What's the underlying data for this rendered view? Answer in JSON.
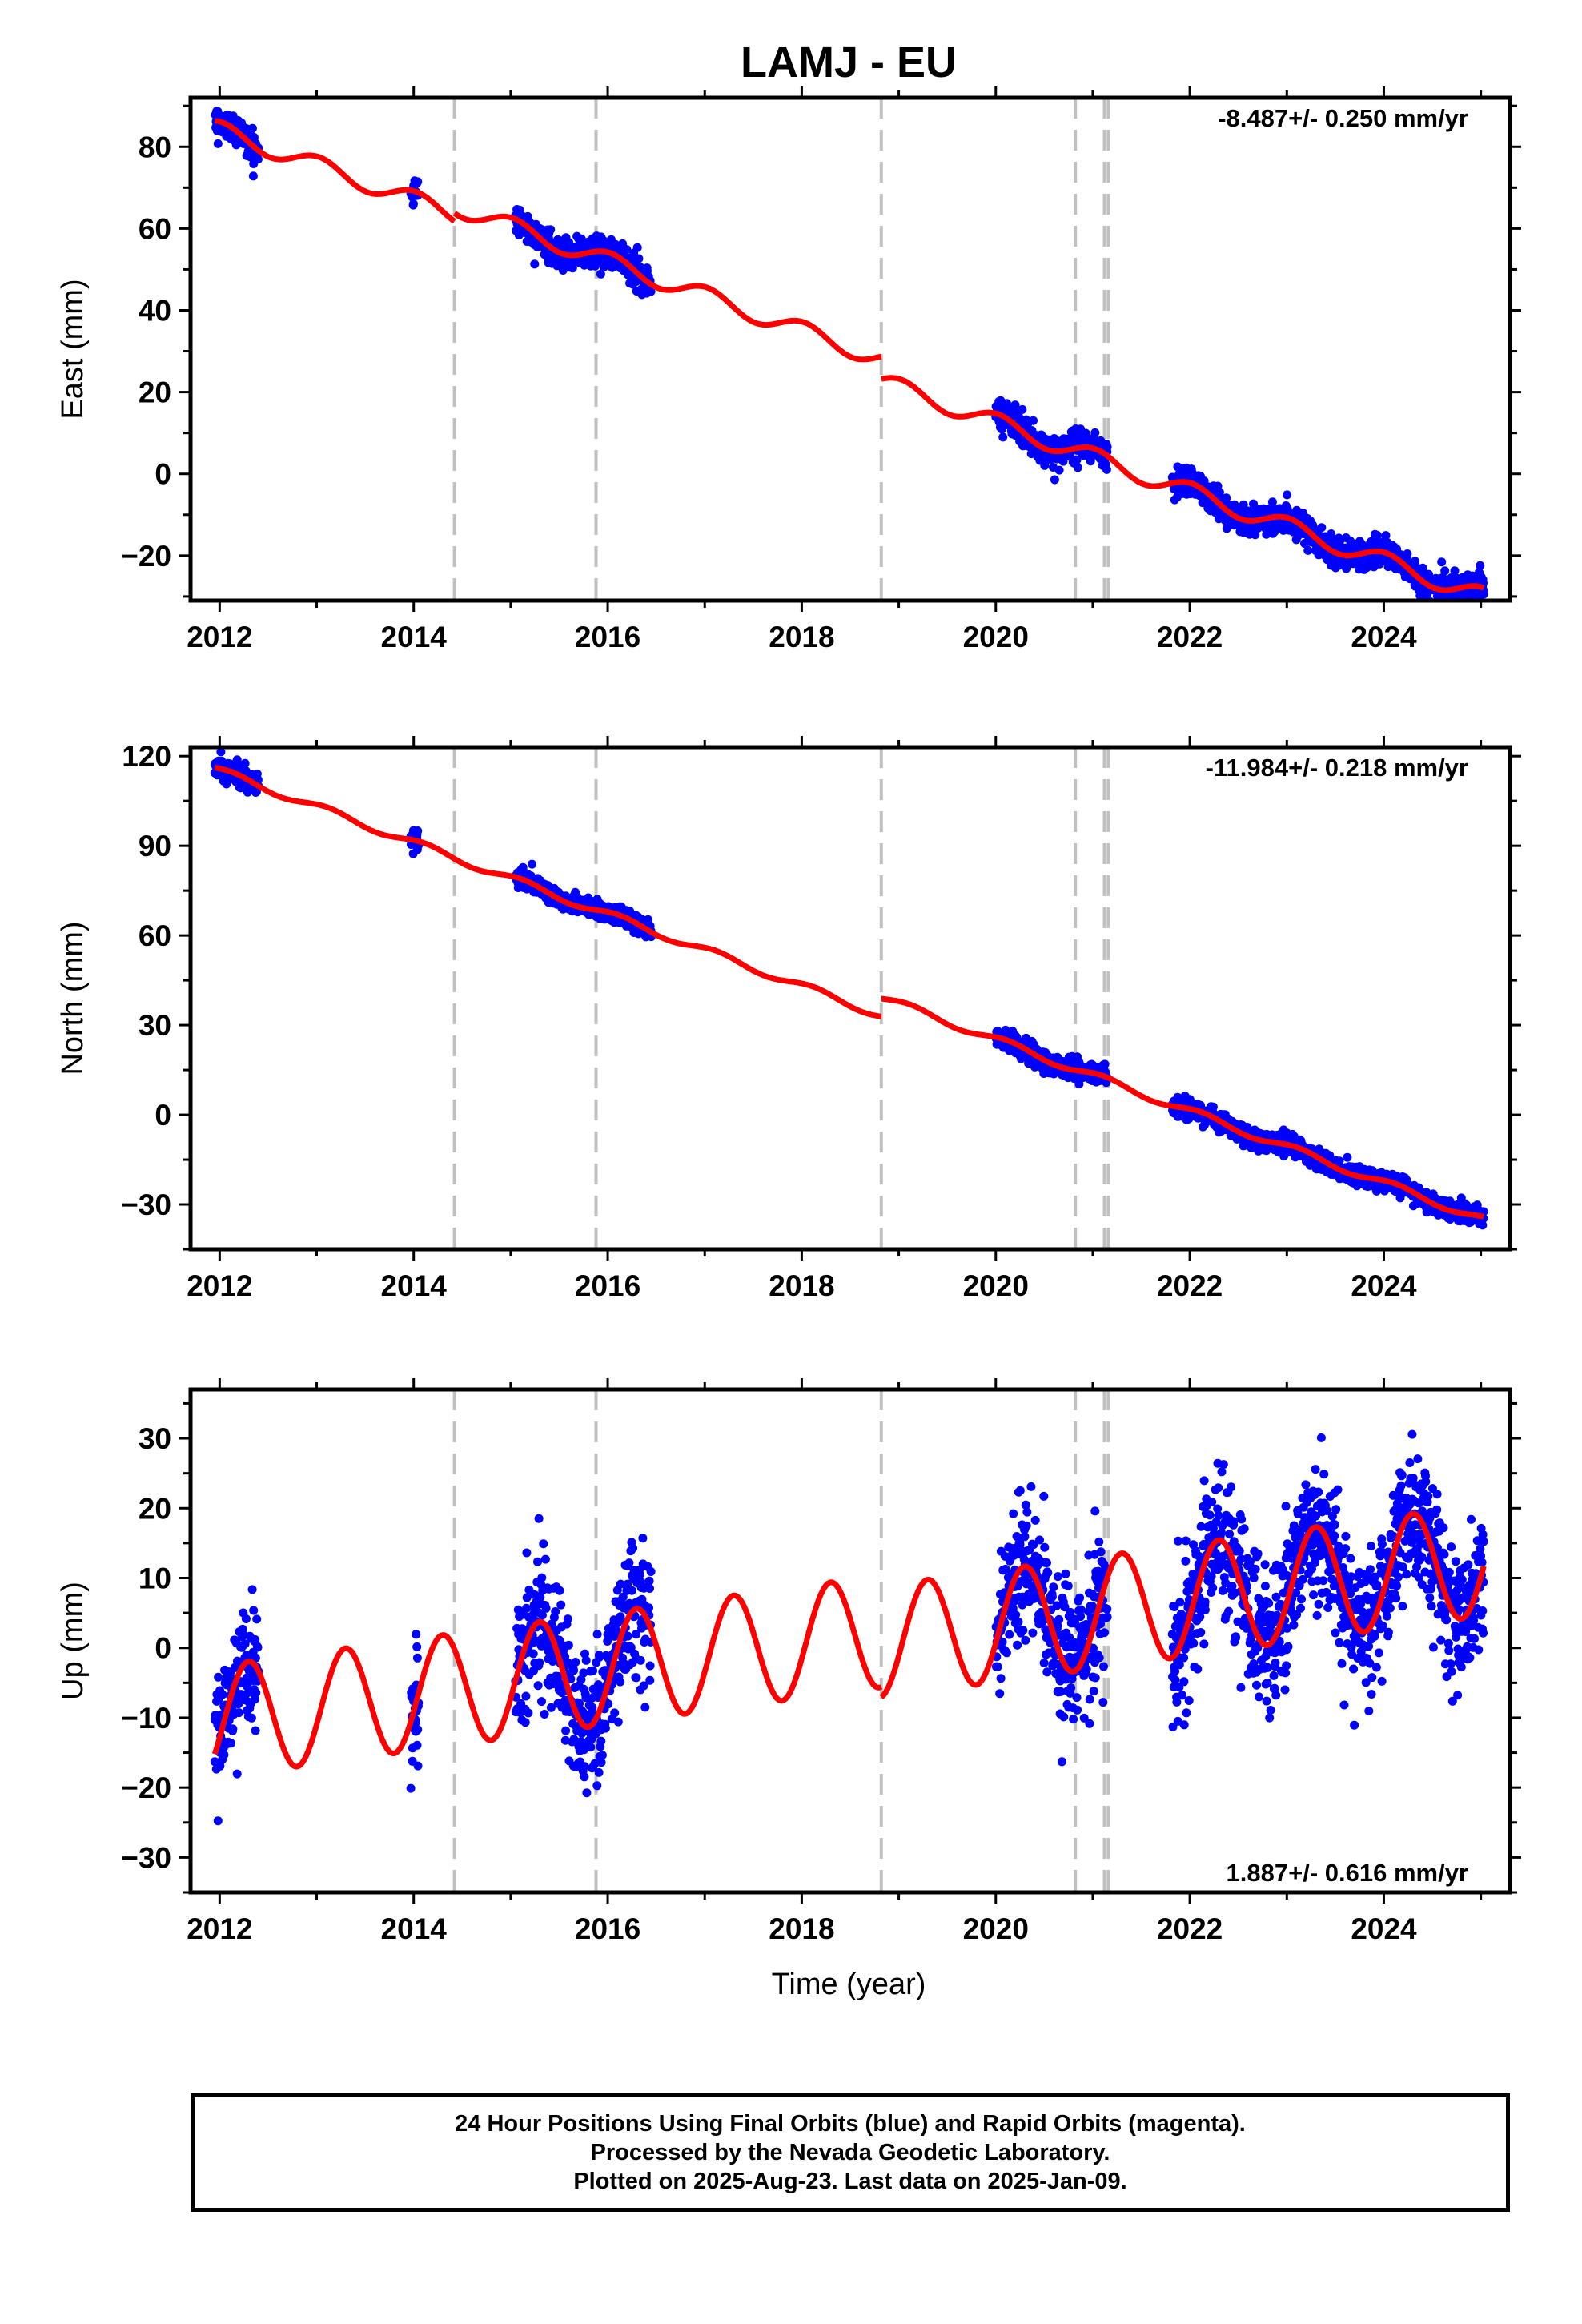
{
  "title": "LAMJ - EU",
  "xlabel": "Time (year)",
  "caption": [
    "24 Hour Positions Using Final Orbits (blue) and Rapid Orbits (magenta).",
    "Processed by the Nevada Geodetic Laboratory.",
    "Plotted on 2025-Aug-23. Last data on 2025-Jan-09."
  ],
  "colors": {
    "data": "#0000ff",
    "model": "#ff0000",
    "offset_line": "#c0c0c0"
  },
  "offset_lines": [
    2014.42,
    2015.88,
    2018.82,
    2020.82,
    2021.12,
    2021.16
  ],
  "chart_data": [
    {
      "type": "scatter",
      "component": "east",
      "ylabel": "East (mm)",
      "rate_label": "-8.487+/- 0.250 mm/yr",
      "xlim": [
        2011.7,
        2025.3
      ],
      "ylim": [
        -31,
        92
      ],
      "xticks": [
        2012,
        2014,
        2016,
        2018,
        2020,
        2022,
        2024
      ],
      "yticks": [
        -20,
        0,
        20,
        40,
        60,
        80
      ],
      "rate": -8.487,
      "intercept": 84.0,
      "annual_amp": 2.2,
      "annual_phase": 1.4,
      "data_segments": [
        [
          2011.95,
          2012.4
        ],
        [
          2013.97,
          2014.05
        ],
        [
          2015.05,
          2016.45
        ],
        [
          2020.0,
          2021.15
        ],
        [
          2021.82,
          2025.03
        ]
      ],
      "model_segments": [
        {
          "from": 2011.95,
          "to": 2014.42,
          "offset": 0.0
        },
        {
          "from": 2014.42,
          "to": 2018.82,
          "offset": 2.0
        },
        {
          "from": 2018.82,
          "to": 2025.03,
          "offset": -3.5
        }
      ],
      "noise": 1.8
    },
    {
      "type": "scatter",
      "component": "north",
      "ylabel": "North (mm)",
      "rate_label": "-11.984+/- 0.218 mm/yr",
      "xlim": [
        2011.7,
        2025.3
      ],
      "ylim": [
        -45,
        123
      ],
      "xticks": [
        2012,
        2014,
        2016,
        2018,
        2020,
        2022,
        2024
      ],
      "yticks": [
        -30,
        0,
        30,
        60,
        90,
        120
      ],
      "rate": -11.984,
      "intercept": 115.0,
      "annual_amp": 1.2,
      "annual_phase": 0.8,
      "data_segments": [
        [
          2011.95,
          2012.4
        ],
        [
          2013.97,
          2014.05
        ],
        [
          2015.05,
          2016.45
        ],
        [
          2020.0,
          2021.15
        ],
        [
          2021.82,
          2025.03
        ]
      ],
      "model_segments": [
        {
          "from": 2011.95,
          "to": 2018.82,
          "offset": 0.0
        },
        {
          "from": 2018.82,
          "to": 2025.03,
          "offset": 6.0
        }
      ],
      "noise": 1.6
    },
    {
      "type": "scatter",
      "component": "up",
      "ylabel": "Up (mm)",
      "rate_label": "1.887+/- 0.616 mm/yr",
      "xlim": [
        2011.7,
        2025.3
      ],
      "ylim": [
        -35,
        37
      ],
      "xticks": [
        2012,
        2014,
        2016,
        2018,
        2020,
        2022,
        2024
      ],
      "yticks": [
        -30,
        -20,
        -10,
        0,
        10,
        20,
        30
      ],
      "rate": 1.887,
      "intercept": -10.5,
      "annual_amp": 8.0,
      "annual_phase": -0.3,
      "data_segments": [
        [
          2011.95,
          2012.4
        ],
        [
          2013.97,
          2014.05
        ],
        [
          2015.05,
          2016.45
        ],
        [
          2020.0,
          2021.15
        ],
        [
          2021.82,
          2025.03
        ]
      ],
      "model_segments": [
        {
          "from": 2011.95,
          "to": 2014.42,
          "offset": 0.0
        },
        {
          "from": 2014.42,
          "to": 2018.82,
          "offset": 0.0
        },
        {
          "from": 2018.82,
          "to": 2025.03,
          "offset": -1.5
        }
      ],
      "noise": 5.0
    }
  ]
}
